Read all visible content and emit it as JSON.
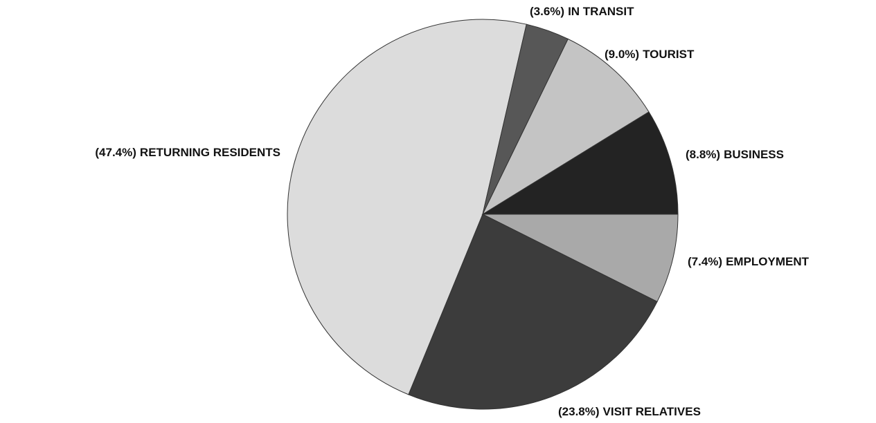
{
  "chart_data": {
    "type": "pie",
    "categories": [
      "EMPLOYMENT",
      "VISIT RELATIVES",
      "RETURNING RESIDENTS",
      "IN TRANSIT",
      "TOURIST",
      "BUSINESS"
    ],
    "values": [
      7.4,
      23.8,
      47.4,
      3.6,
      9.0,
      8.8
    ],
    "value_labels": [
      "(7.4%)",
      "(23.8%)",
      "(47.4%)",
      "(3.6%)",
      "(9.0%)",
      "(8.8%)"
    ],
    "colors": [
      "#a9a9a9",
      "#3c3c3c",
      "#dcdcdc",
      "#575757",
      "#c4c4c4",
      "#232323"
    ]
  }
}
